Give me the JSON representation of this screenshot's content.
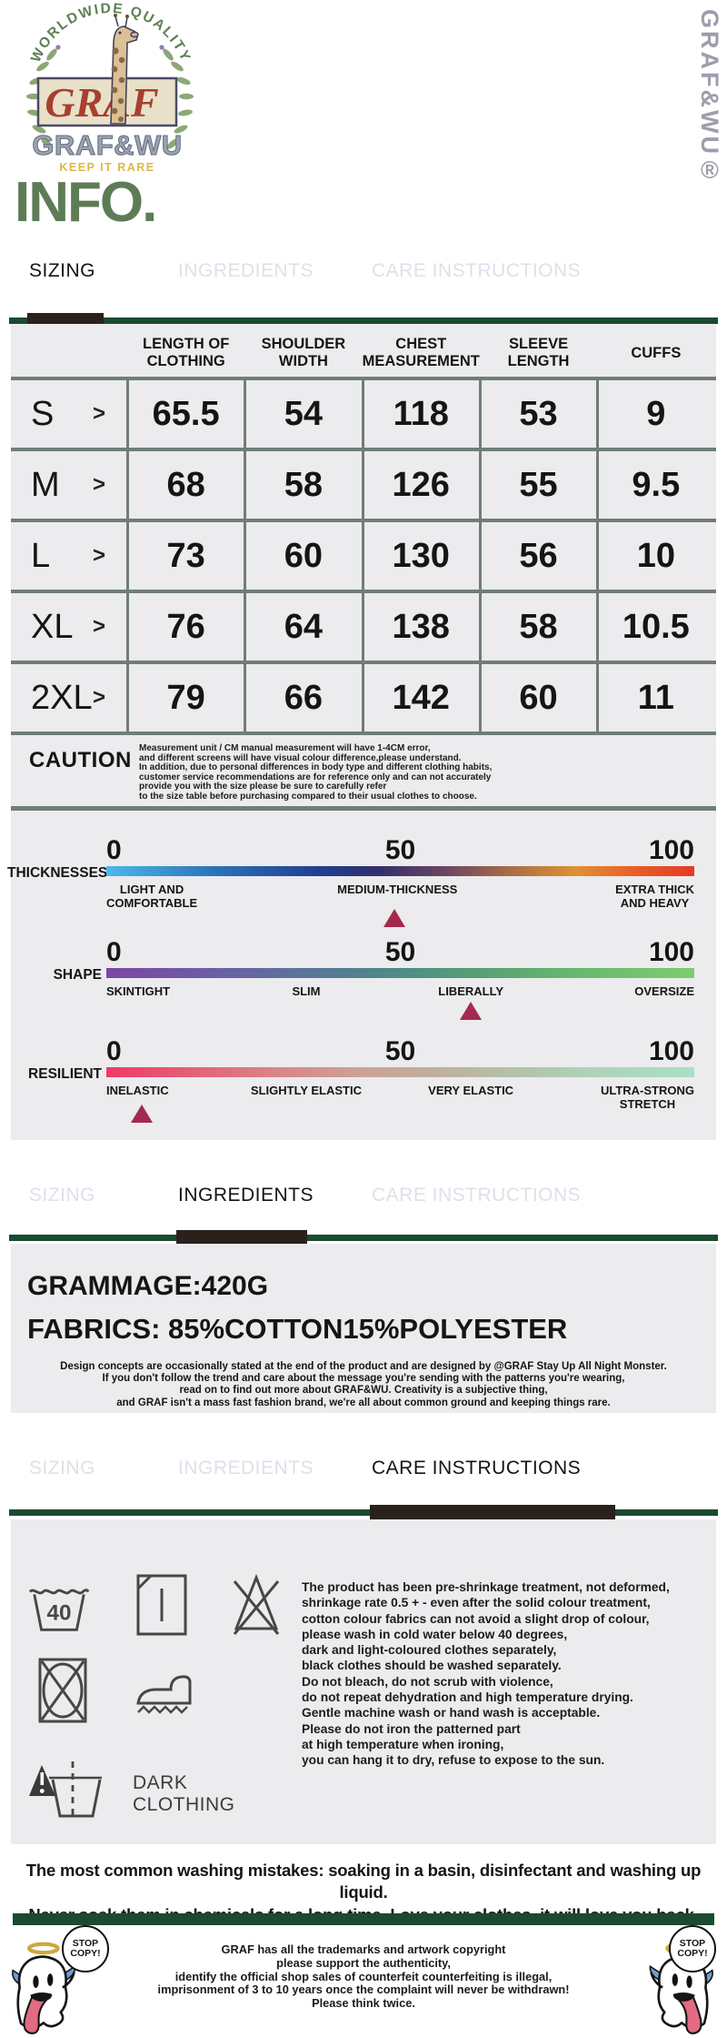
{
  "brand": {
    "arc_text": "WORLDWIDE QUALITY",
    "logo_word": "GRAF",
    "logo_name": "GRAF&WU",
    "tagline": "KEEP IT RARE",
    "vertical_text": "GRAF&WU®"
  },
  "page_title": "INFO.",
  "tabs": [
    "SIZING",
    "INGREDIENTS",
    "CARE INSTRUCTIONS"
  ],
  "sizing_table": {
    "columns": [
      "LENGTH OF\nCLOTHING",
      "SHOULDER\nWIDTH",
      "CHEST\nMEASUREMENT",
      "SLEEVE\nLENGTH",
      "CUFFS"
    ],
    "rows": [
      {
        "size": "S",
        "arrow": ">",
        "values": [
          "65.5",
          "54",
          "118",
          "53",
          "9"
        ]
      },
      {
        "size": "M",
        "arrow": ">",
        "values": [
          "68",
          "58",
          "126",
          "55",
          "9.5"
        ]
      },
      {
        "size": "L",
        "arrow": ">",
        "values": [
          "73",
          "60",
          "130",
          "56",
          "10"
        ]
      },
      {
        "size": "XL",
        "arrow": ">",
        "values": [
          "76",
          "64",
          "138",
          "58",
          "10.5"
        ]
      },
      {
        "size": "2XL",
        "arrow": ">",
        "values": [
          "79",
          "66",
          "142",
          "60",
          "11"
        ]
      }
    ]
  },
  "caution": {
    "title": "CAUTION",
    "text": "Measurement unit / CM manual measurement will have 1-4CM error,\nand different screens will have visual colour difference,please understand.\nIn addition, due to personal differences in body type and different clothing habits,\ncustomer service recommendations are for reference only and can not accurately\nprovide you with the size please be sure to carefully refer\nto the size table before purchasing compared to their usual clothes to choose."
  },
  "scales": [
    {
      "name": "THICKNESSES",
      "ticks": [
        "0",
        "50",
        "100"
      ],
      "labels": [
        "LIGHT AND\nCOMFORTABLE",
        "MEDIUM-THICKNESS",
        "EXTRA THICK\nAND HEAVY"
      ],
      "marker_percent": 49,
      "gradient": "linear-gradient(90deg,#4cb8e8 0%,#2b74bb 18%,#1f3f92 36%,#312f6b 46%,#6e4662 58%,#b07244 70%,#e09134 80%,#ea5c28 90%,#e63a22 100%)"
    },
    {
      "name": "SHAPE",
      "ticks": [
        "0",
        "50",
        "100"
      ],
      "labels": [
        "SKINTIGHT",
        "SLIM",
        "LIBERALLY",
        "OVERSIZE"
      ],
      "marker_percent": 62,
      "gradient": "linear-gradient(90deg,#7d47a4 0%,#6e59a6 15%,#5e6f9e 30%,#527f90 42%,#4f8f83 52%,#57a273 65%,#66b96e 80%,#7ccd70 100%)"
    },
    {
      "name": "RESILIENT",
      "ticks": [
        "0",
        "50",
        "100"
      ],
      "labels": [
        "INELASTIC",
        "SLIGHTLY ELASTIC",
        "VERY ELASTIC",
        "ULTRA-STRONG\nSTRETCH"
      ],
      "marker_percent": 6,
      "gradient": "linear-gradient(90deg,#ee3a67 0%,#e55a75 12%,#da8287 28%,#cda093 42%,#c0ae9e 55%,#b5bfa9 68%,#aed2b8 82%,#a9e0c4 100%)"
    }
  ],
  "ingredients": {
    "grammage": "GRAMMAGE:420G",
    "fabrics": "FABRICS: 85%COTTON15%POLYESTER",
    "note": "Design concepts are occasionally stated at the end of the product and are designed by @GRAF Stay Up All Night Monster.\nIf you don't follow the trend and care about the message you're sending with the patterns you're wearing,\nread on to find out more about GRAF&WU. Creativity is a subjective thing,\nand GRAF isn't a mass fast fashion brand, we're all about common ground and keeping things rare."
  },
  "care": {
    "wash_temp": "40",
    "dark_clothing": "DARK\nCLOTHING",
    "text": "The product has been pre-shrinkage treatment, not deformed,\nshrinkage rate 0.5 + - even after the solid colour treatment,\ncotton colour fabrics can not avoid a slight drop of colour,\nplease wash in cold water below 40 degrees,\ndark and light-coloured clothes separately,\nblack clothes should be washed separately.\nDo not bleach, do not scrub with violence,\ndo not repeat dehydration and high temperature drying.\nGentle machine wash or hand wash is acceptable.\nPlease do not iron the patterned part\nat high temperature when ironing,\nyou can hang it to dry, refuse to expose to the sun."
  },
  "washing_note": "The most common washing mistakes: soaking in a basin, disinfectant and washing up liquid.\nNever soak them in chemicals for a long time..Love your clothes, it will love you back.",
  "footer": {
    "stop_copy": "STOP\nCOPY!",
    "text": "GRAF has all the trademarks and artwork copyright\nplease support the authenticity,\nidentify the official shop sales of counterfeit counterfeiting is illegal,\nimprisonment of 3 to 10 years once the complaint will never be withdrawn!\nPlease think twice."
  },
  "colors": {
    "accent_green": "#1a4a30",
    "title_green": "#5d7c55",
    "marker": "#a5294e",
    "tab_inactive": "#dde1e9",
    "table_border": "#6f7e76",
    "section_bg": "#ecebee",
    "logo_red": "#a6402f",
    "logo_gray": "#9aa3b2",
    "tagline_gold": "#d9ba45"
  }
}
